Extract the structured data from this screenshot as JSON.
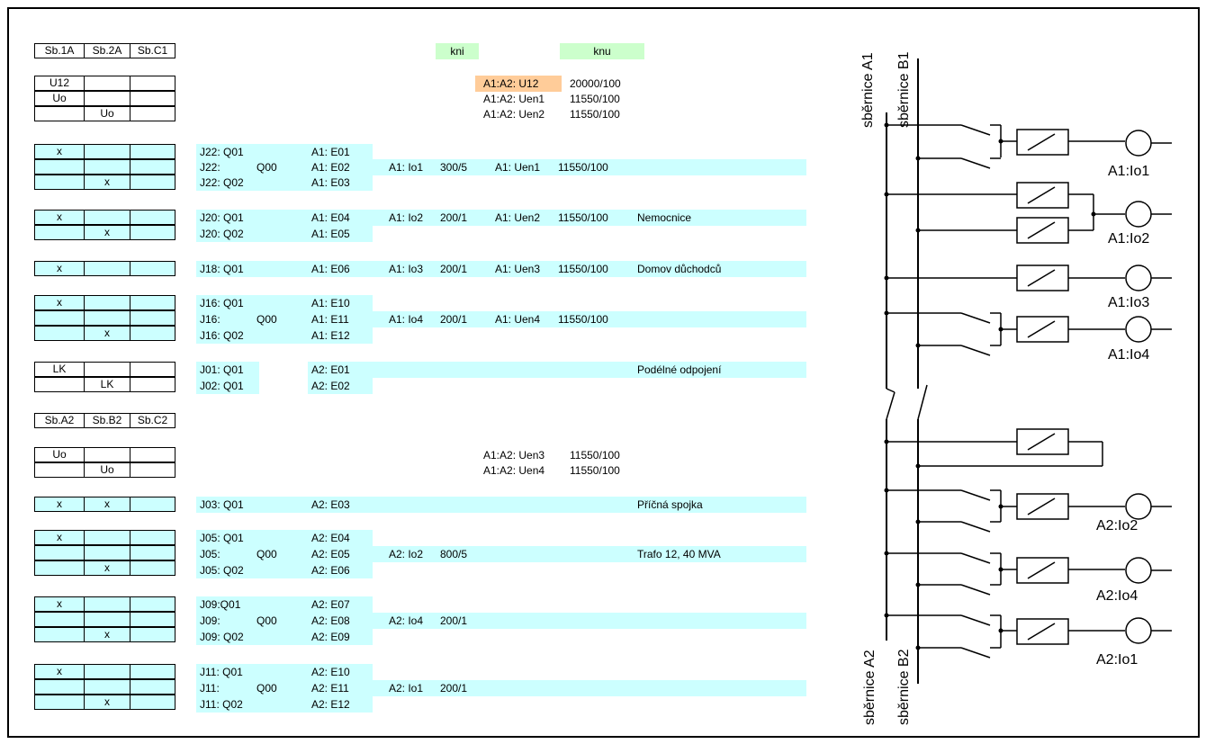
{
  "headers_top": [
    "Sb.1A",
    "Sb.2A",
    "Sb.C1"
  ],
  "headers_bottom": [
    "Sb.A2",
    "Sb.B2",
    "Sb.C2"
  ],
  "kni_label": "kni",
  "knu_label": "knu",
  "u12_label": "U12",
  "uo_label": "Uo",
  "x_mark": "x",
  "lk_label": "LK",
  "voltage_rows": [
    {
      "name": "A1:A2:  U12",
      "ratio": "20000/100"
    },
    {
      "name": "A1:A2:  Uen1",
      "ratio": "11550/100"
    },
    {
      "name": "A1:A2:  Uen2",
      "ratio": "11550/100"
    }
  ],
  "voltage_rows_2": [
    {
      "name": "A1:A2:  Uen3",
      "ratio": "11550/100"
    },
    {
      "name": "A1:A2:  Uen4",
      "ratio": "11550/100"
    }
  ],
  "j22": {
    "r1": "J22: Q01",
    "r2": "J22:",
    "r2q": "Q00",
    "r3": "J22: Q02",
    "e1": "A1: E01",
    "e2": "A1: E02",
    "e3": "A1: E03",
    "io": "A1: Io1",
    "io_ratio": "300/5",
    "uen": "A1: Uen1",
    "uen_ratio": "11550/100"
  },
  "j20": {
    "r1": "J20: Q01",
    "r2": "J20: Q02",
    "e1": "A1: E04",
    "e2": "A1: E05",
    "io": "A1: Io2",
    "io_ratio": "200/1",
    "uen": "A1: Uen2",
    "uen_ratio": "11550/100",
    "desc": "Nemocnice"
  },
  "j18": {
    "r1": "J18: Q01",
    "e1": "A1: E06",
    "io": "A1: Io3",
    "io_ratio": "200/1",
    "uen": "A1: Uen3",
    "uen_ratio": "11550/100",
    "desc": "Domov důchodců"
  },
  "j16": {
    "r1": "J16: Q01",
    "r2": "J16:",
    "r2q": "Q00",
    "r3": "J16: Q02",
    "e1": "A1: E10",
    "e2": "A1: E11",
    "e3": "A1: E12",
    "io": "A1: Io4",
    "io_ratio": "200/1",
    "uen": "A1: Uen4",
    "uen_ratio": "11550/100"
  },
  "j01": {
    "r1": "J01: Q01",
    "r2": "J02: Q01",
    "e1": "A2: E01",
    "e2": "A2: E02",
    "desc": "Podélné odpojení"
  },
  "j03": {
    "r1": "J03: Q01",
    "e1": "A2: E03",
    "desc": "Příčná spojka"
  },
  "j05": {
    "r1": "J05: Q01",
    "r2": "J05:",
    "r2q": "Q00",
    "r3": "J05: Q02",
    "e1": "A2: E04",
    "e2": "A2: E05",
    "e3": "A2: E06",
    "io": "A2: Io2",
    "io_ratio": "800/5",
    "desc": "Trafo 12, 40 MVA"
  },
  "j09": {
    "r1": "J09:Q01",
    "r2": "J09:",
    "r2q": "Q00",
    "r3": "J09: Q02",
    "e1": "A2: E07",
    "e2": "A2: E08",
    "e3": "A2: E09",
    "io": "A2: Io4",
    "io_ratio": "200/1"
  },
  "j11": {
    "r1": "J11: Q01",
    "r2": "J11:",
    "r2q": "Q00",
    "r3": "J11: Q02",
    "e1": "A2: E10",
    "e2": "A2: E11",
    "e3": "A2: E12",
    "io": "A2: Io1",
    "io_ratio": "200/1"
  },
  "schema": {
    "bus_a1": "sběrnice A1",
    "bus_b1": "sběrnice B1",
    "bus_a2": "sběrnice A2",
    "bus_b2": "sběrnice B2",
    "outputs": [
      "A1:Io1",
      "A1:Io2",
      "A1:Io3",
      "A1:Io4",
      "A2:Io2",
      "A2:Io4",
      "A2:Io1"
    ]
  },
  "colors": {
    "cyan": "#ccffff",
    "green": "#ccffcc",
    "orange": "#ffcc99"
  }
}
